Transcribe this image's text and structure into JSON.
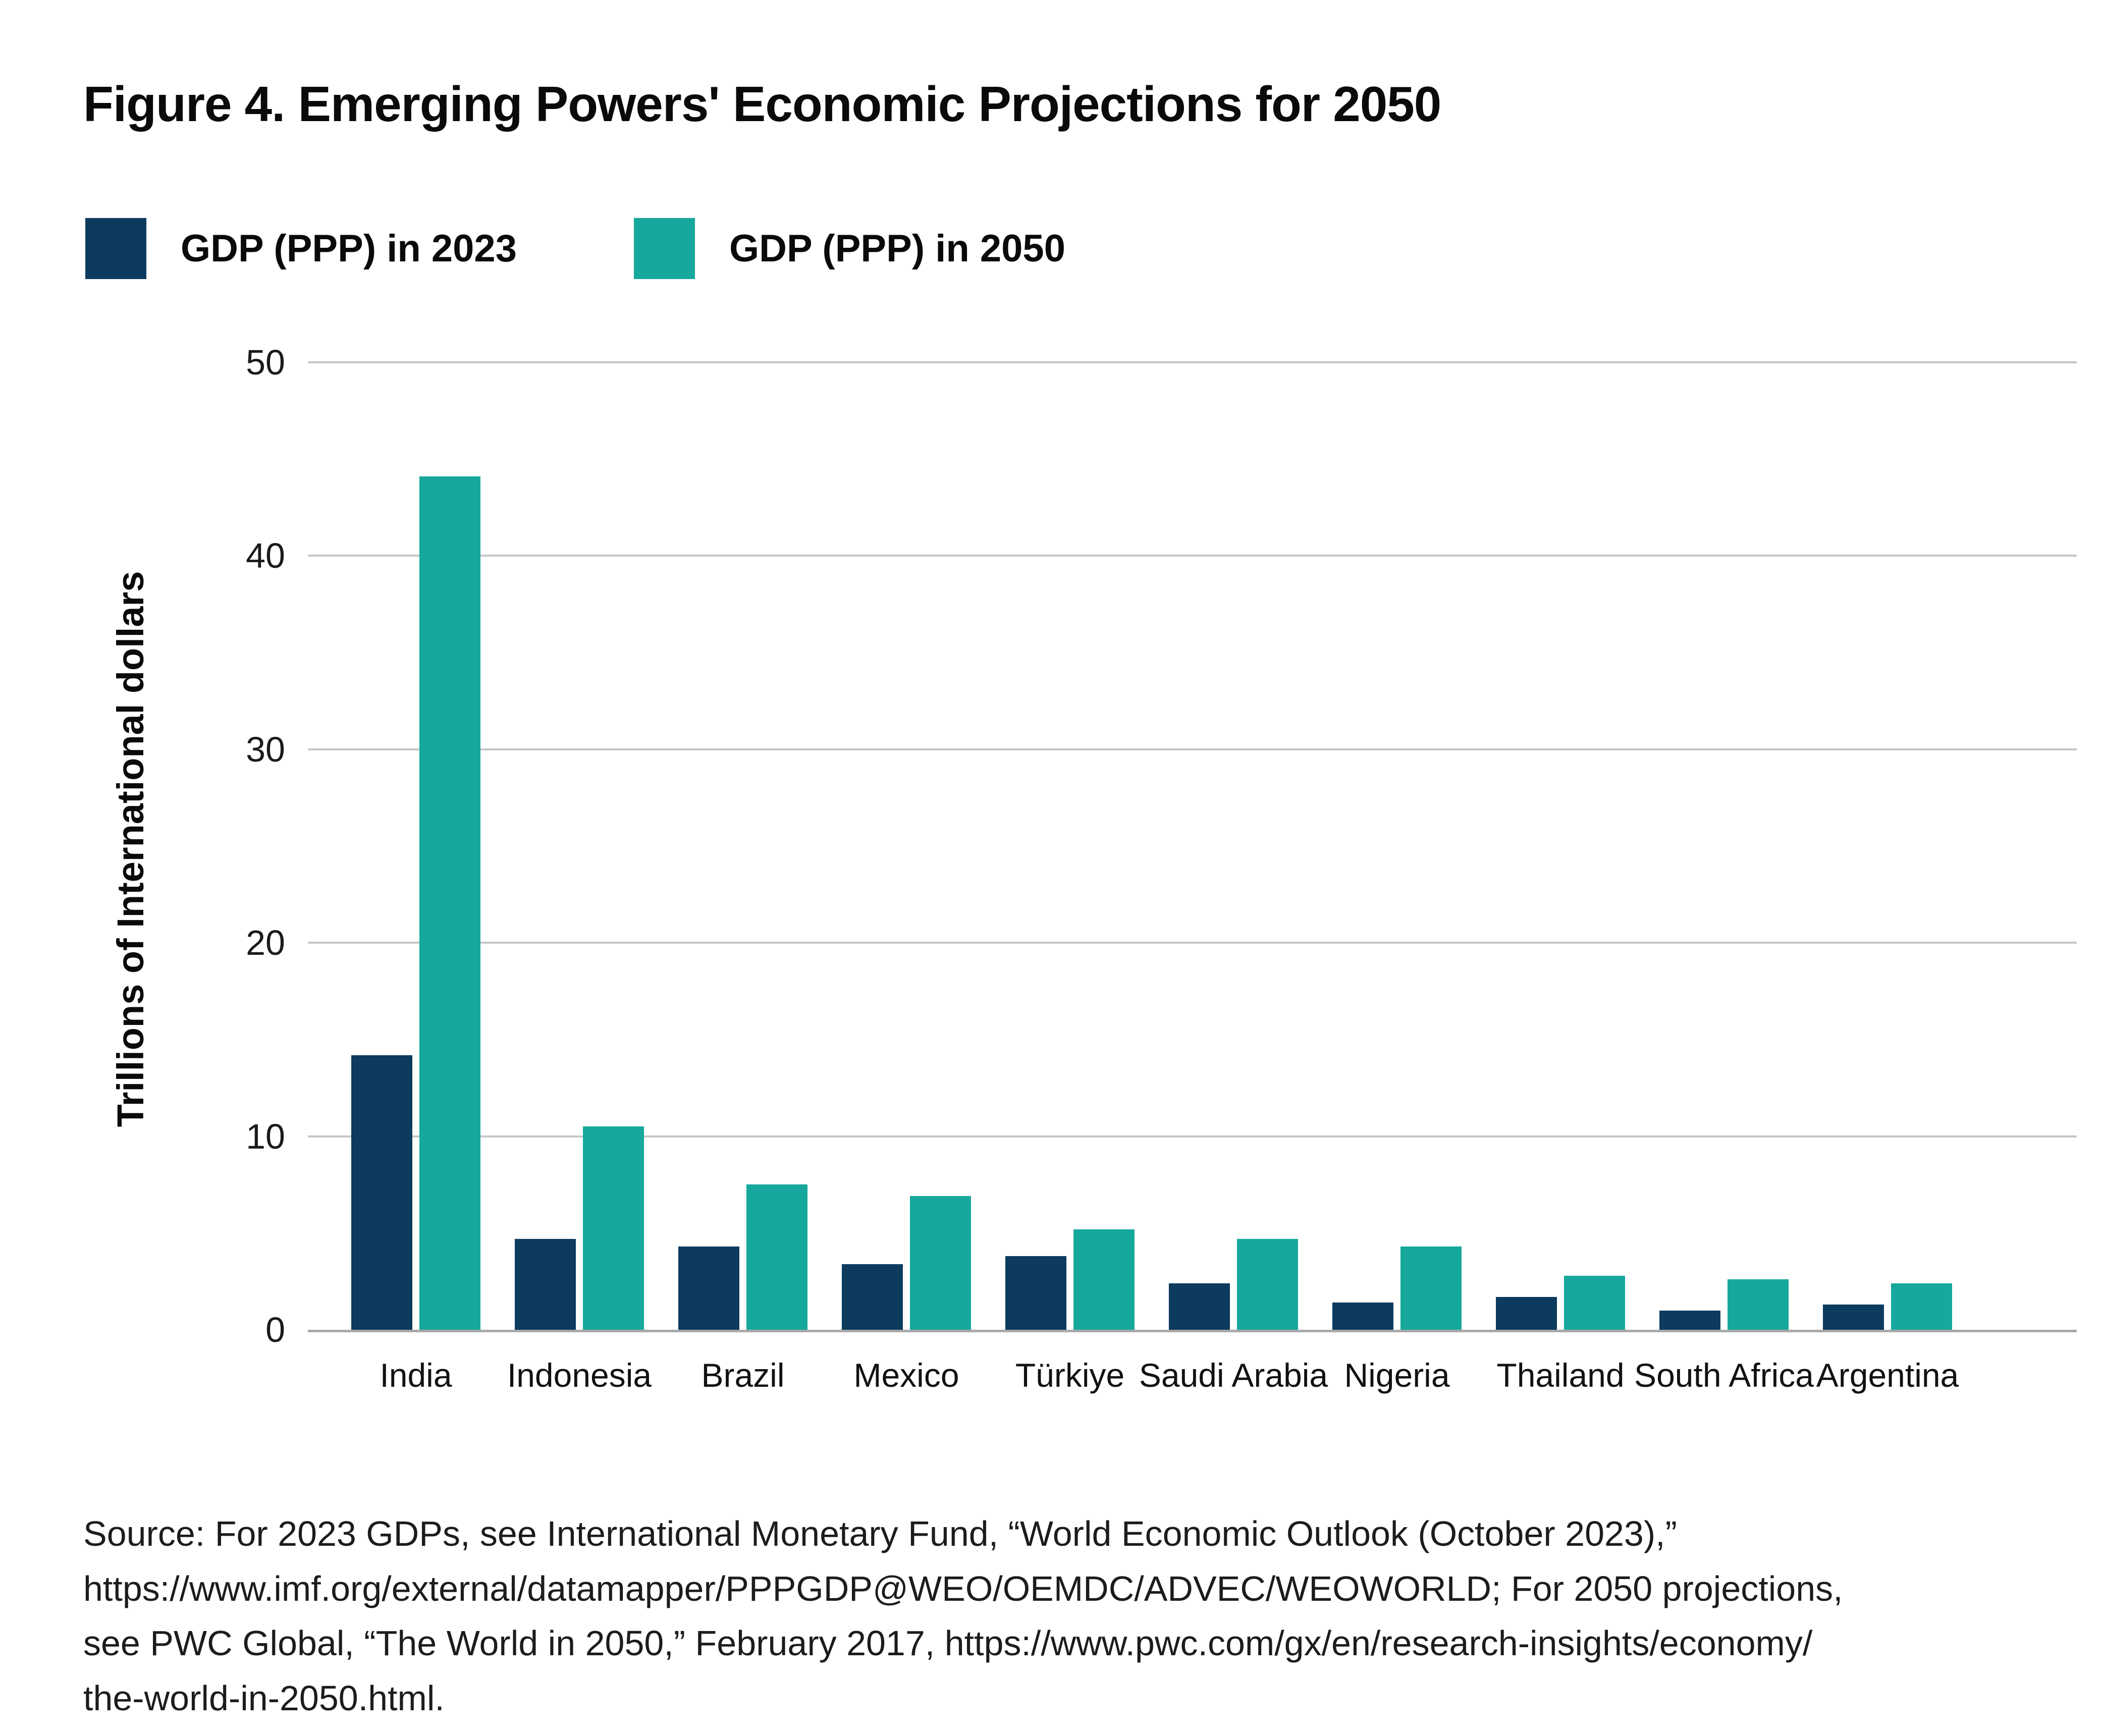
{
  "figure": {
    "title": "Figure 4. Emerging Powers' Economic Projections for 2050",
    "source": "Source: For 2023 GDPs, see International Monetary Fund, “World Economic Outlook (October 2023),”\nhttps://www.imf.org/external/datamapper/PPPGDP@WEO/OEMDC/ADVEC/WEOWORLD; For 2050 projections,\nsee PWC Global, “The World in 2050,” February 2017, https://www.pwc.com/gx/en/research-insights/economy/\nthe-world-in-2050.html."
  },
  "colors": {
    "navy": "#0c3b5e",
    "teal": "#16a89d",
    "gridline": "#c6c6c6",
    "axis": "#a9a9a9"
  },
  "legend": {
    "items": [
      {
        "label": "GDP (PPP) in 2023",
        "color": "#0c3b5e"
      },
      {
        "label": "GDP (PPP) in 2050",
        "color": "#16a89d"
      }
    ]
  },
  "chart_data": {
    "type": "bar",
    "title": "Figure 4. Emerging Powers' Economic Projections for 2050",
    "xlabel": "",
    "ylabel": "Trillions of International dollars",
    "ylim": [
      0,
      50
    ],
    "yticks": [
      0,
      10,
      20,
      30,
      40,
      50
    ],
    "grid": true,
    "legend_position": "top-left",
    "categories": [
      "India",
      "Indonesia",
      "Brazil",
      "Mexico",
      "Türkiye",
      "Saudi Arabia",
      "Nigeria",
      "Thailand",
      "South Africa",
      "Argentina"
    ],
    "series": [
      {
        "name": "GDP (PPP) in 2023",
        "color": "#0c3b5e",
        "values": [
          14.2,
          4.7,
          4.3,
          3.4,
          3.8,
          2.4,
          1.4,
          1.7,
          1.0,
          1.3
        ]
      },
      {
        "name": "GDP (PPP) in 2050",
        "color": "#16a89d",
        "values": [
          44.1,
          10.5,
          7.5,
          6.9,
          5.2,
          4.7,
          4.3,
          2.8,
          2.6,
          2.4
        ]
      }
    ]
  }
}
